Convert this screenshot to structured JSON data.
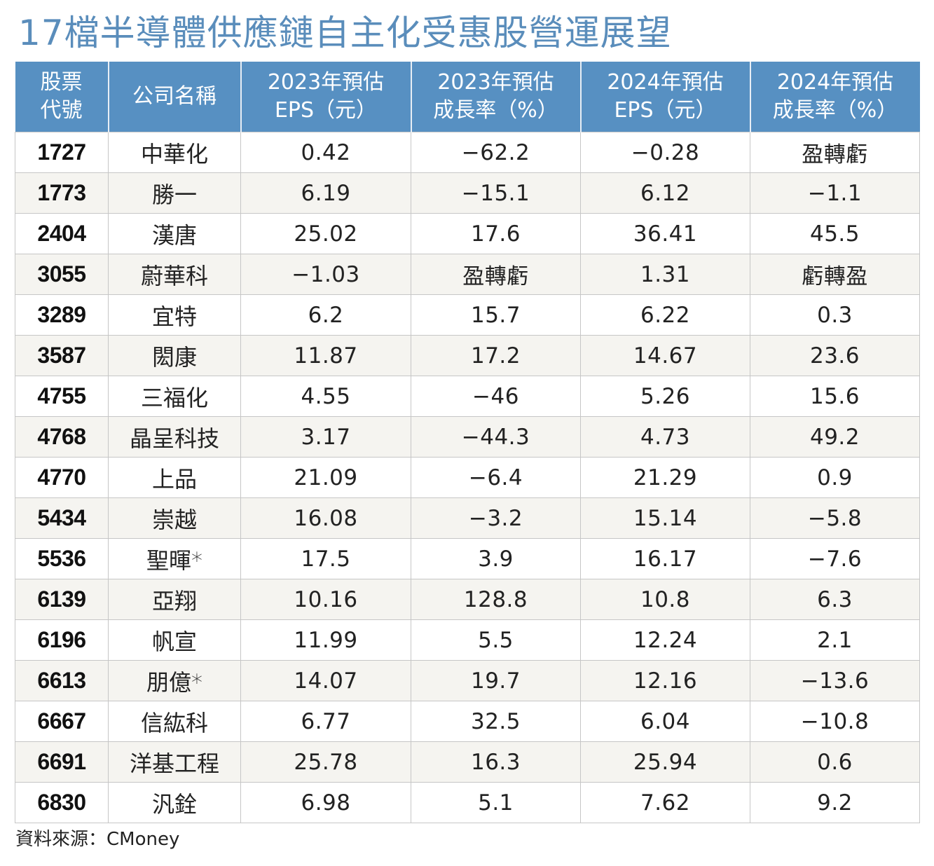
{
  "title": "17檔半導體供應鏈自主化受惠股營運展望",
  "colors": {
    "title": "#5a8dbb",
    "header_bg": "#5790c2",
    "header_text": "#ffffff",
    "row_alt_bg": "#f5f4f0",
    "grid": "#c6c6c6"
  },
  "table": {
    "headers": [
      {
        "line1": "股票",
        "line2": "代號"
      },
      {
        "line1": "公司名稱",
        "line2": ""
      },
      {
        "line1": "2023年預估",
        "line2": "EPS（元）"
      },
      {
        "line1": "2023年預估",
        "line2": "成長率（%）"
      },
      {
        "line1": "2024年預估",
        "line2": "EPS（元）"
      },
      {
        "line1": "2024年預估",
        "line2": "成長率（%）"
      }
    ],
    "rows": [
      {
        "code": "1727",
        "name": "中華化",
        "eps2023": "0.42",
        "growth2023": "−62.2",
        "eps2024": "−0.28",
        "growth2024": "盈轉虧"
      },
      {
        "code": "1773",
        "name": "勝一",
        "eps2023": "6.19",
        "growth2023": "−15.1",
        "eps2024": "6.12",
        "growth2024": "−1.1"
      },
      {
        "code": "2404",
        "name": "漢唐",
        "eps2023": "25.02",
        "growth2023": "17.6",
        "eps2024": "36.41",
        "growth2024": "45.5"
      },
      {
        "code": "3055",
        "name": "蔚華科",
        "eps2023": "−1.03",
        "growth2023": "盈轉虧",
        "eps2024": "1.31",
        "growth2024": "虧轉盈"
      },
      {
        "code": "3289",
        "name": "宜特",
        "eps2023": "6.2",
        "growth2023": "15.7",
        "eps2024": "6.22",
        "growth2024": "0.3"
      },
      {
        "code": "3587",
        "name": "閎康",
        "eps2023": "11.87",
        "growth2023": "17.2",
        "eps2024": "14.67",
        "growth2024": "23.6"
      },
      {
        "code": "4755",
        "name": "三福化",
        "eps2023": "4.55",
        "growth2023": "−46",
        "eps2024": "5.26",
        "growth2024": "15.6"
      },
      {
        "code": "4768",
        "name": "晶呈科技",
        "eps2023": "3.17",
        "growth2023": "−44.3",
        "eps2024": "4.73",
        "growth2024": "49.2"
      },
      {
        "code": "4770",
        "name": "上品",
        "eps2023": "21.09",
        "growth2023": "−6.4",
        "eps2024": "21.29",
        "growth2024": "0.9"
      },
      {
        "code": "5434",
        "name": "崇越",
        "eps2023": "16.08",
        "growth2023": "−3.2",
        "eps2024": "15.14",
        "growth2024": "−5.8"
      },
      {
        "code": "5536",
        "name": "聖暉*",
        "eps2023": "17.5",
        "growth2023": "3.9",
        "eps2024": "16.17",
        "growth2024": "−7.6"
      },
      {
        "code": "6139",
        "name": "亞翔",
        "eps2023": "10.16",
        "growth2023": "128.8",
        "eps2024": "10.8",
        "growth2024": "6.3"
      },
      {
        "code": "6196",
        "name": "帆宣",
        "eps2023": "11.99",
        "growth2023": "5.5",
        "eps2024": "12.24",
        "growth2024": "2.1"
      },
      {
        "code": "6613",
        "name": "朋億*",
        "eps2023": "14.07",
        "growth2023": "19.7",
        "eps2024": "12.16",
        "growth2024": "−13.6"
      },
      {
        "code": "6667",
        "name": "信紘科",
        "eps2023": "6.77",
        "growth2023": "32.5",
        "eps2024": "6.04",
        "growth2024": "−10.8"
      },
      {
        "code": "6691",
        "name": "洋基工程",
        "eps2023": "25.78",
        "growth2023": "16.3",
        "eps2024": "25.94",
        "growth2024": "0.6"
      },
      {
        "code": "6830",
        "name": "汎銓",
        "eps2023": "6.98",
        "growth2023": "5.1",
        "eps2024": "7.62",
        "growth2024": "9.2"
      }
    ]
  },
  "source": "資料來源：CMoney"
}
